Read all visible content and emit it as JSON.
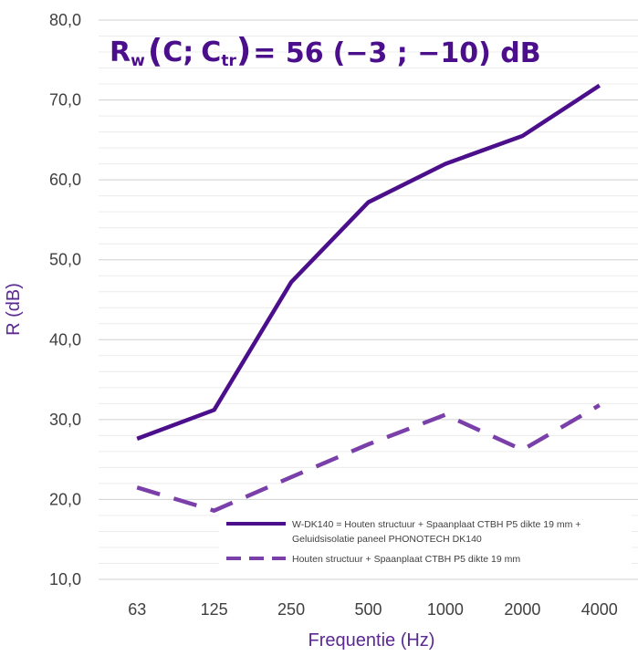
{
  "chart_data": {
    "type": "line",
    "title_parts": {
      "r": "R",
      "w": "w",
      "open": "(",
      "c": "C;",
      "c2": "C",
      "tr": "tr",
      "close": ")",
      "value": "= 56",
      "terms": "(−3 ; −10) dB"
    },
    "xlabel": "Frequentie (Hz)",
    "ylabel": "R (dB)",
    "categories": [
      "63",
      "125",
      "250",
      "500",
      "1000",
      "2000",
      "4000"
    ],
    "yticks": [
      "10,0",
      "20,0",
      "30,0",
      "40,0",
      "50,0",
      "60,0",
      "70,0",
      "80,0"
    ],
    "ylim": [
      10,
      80
    ],
    "grid": true,
    "legend_position": "bottom-right inside",
    "series": [
      {
        "name_line1": "W-DK140 = Houten structuur + Spaanplaat CTBH P5 dikte 19 mm +",
        "name_line2": "Geluidsisolatie paneel PHONOTECH DK140",
        "style": "solid",
        "color": "#4b0f8c",
        "values": [
          27.6,
          31.2,
          47.2,
          57.2,
          62.0,
          65.5,
          71.8
        ]
      },
      {
        "name": "Houten structuur + Spaanplaat CTBH P5 dikte 19 mm",
        "style": "dashed",
        "color": "#7b3fa9",
        "values": [
          21.5,
          18.6,
          22.8,
          26.9,
          30.6,
          26.2,
          31.8
        ]
      }
    ]
  }
}
